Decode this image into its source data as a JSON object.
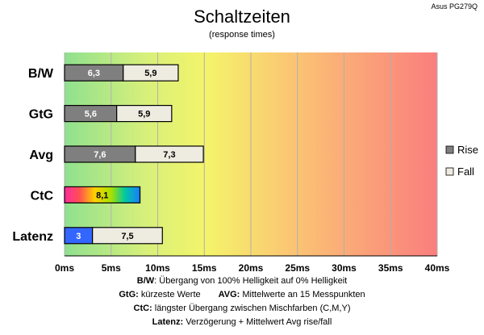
{
  "chart_data": {
    "type": "bar",
    "orientation": "horizontal",
    "stacked": true,
    "title": "Schaltzeiten",
    "subtitle": "(response times)",
    "model": "Asus PG279Q",
    "categories": [
      "B/W",
      "GtG",
      "Avg",
      "CtC",
      "Latenz"
    ],
    "series": [
      {
        "name": "Rise",
        "values": [
          6.3,
          5.6,
          7.6,
          null,
          null
        ],
        "labels": [
          "6,3",
          "5,6",
          "7,6",
          "",
          ""
        ],
        "color": "#7f7f7f"
      },
      {
        "name": "Fall",
        "values": [
          5.9,
          5.9,
          7.3,
          null,
          7.5
        ],
        "labels": [
          "5,9",
          "5,9",
          "7,3",
          "",
          "7,5"
        ],
        "color": "#eeece1"
      },
      {
        "name": "CtC",
        "values": [
          null,
          null,
          null,
          8.1,
          null
        ],
        "labels": [
          "",
          "",
          "",
          "8,1",
          ""
        ],
        "color": "gradient"
      },
      {
        "name": "Latenz",
        "values": [
          null,
          null,
          null,
          null,
          3
        ],
        "labels": [
          "",
          "",
          "",
          "",
          "3"
        ],
        "color": "#3366ff"
      }
    ],
    "xlim": [
      0,
      40
    ],
    "xticks": [
      "0ms",
      "5ms",
      "10ms",
      "15ms",
      "20ms",
      "25ms",
      "30ms",
      "35ms",
      "40ms"
    ],
    "legend": {
      "position": "right",
      "entries": [
        "Rise",
        "Fall"
      ]
    },
    "grid": true,
    "background": "gradient green-yellow-red"
  },
  "notes": {
    "line1": {
      "key": "B/W",
      "text": ":  Übergang von 100% Helligkeit auf 0% Helligkeit"
    },
    "line2a": {
      "key": "GtG:",
      "text": " kürzeste  Werte"
    },
    "line2b": {
      "key": "AVG:",
      "text": " Mittelwerte  an 15 Messpunkten"
    },
    "line3": {
      "key": "CtC:",
      "text": " längster Übergang  zwischen Mischfarben  (C,M,Y)"
    },
    "line4": {
      "key": "Latenz:",
      "text": " Verzögerung  + Mittelwert  Avg rise/fall"
    }
  }
}
